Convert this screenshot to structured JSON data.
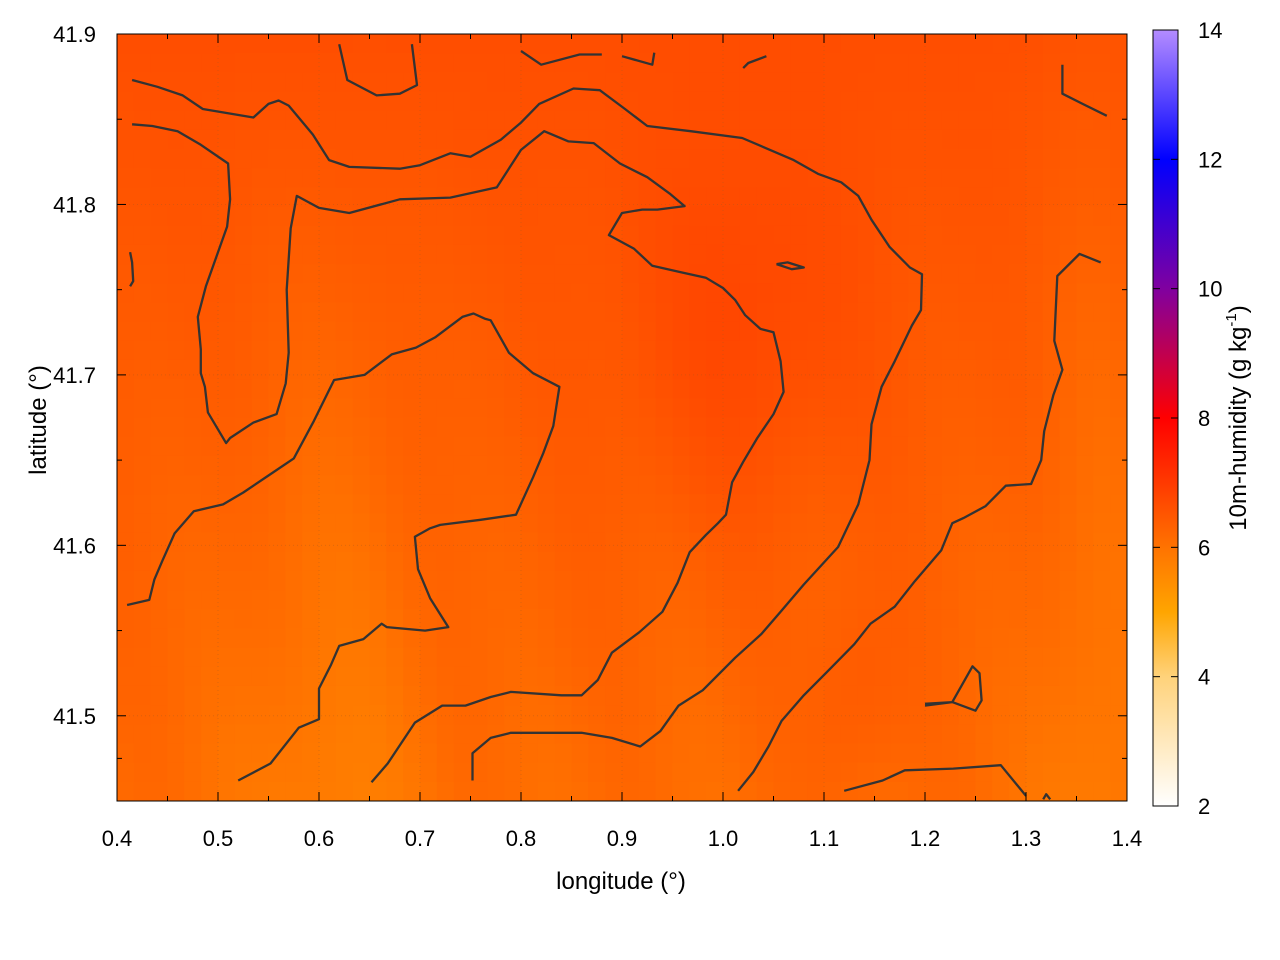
{
  "chart_data": {
    "type": "heatmap",
    "xlabel": "longitude (°)",
    "ylabel": "latitude (°)",
    "colorbar_label": "10m-humidity (g kg",
    "colorbar_label_sup": "-1",
    "colorbar_label_end": ")",
    "xlim": [
      0.4,
      1.4
    ],
    "ylim": [
      41.45,
      41.9
    ],
    "x_ticks": [
      0.4,
      0.5,
      0.6,
      0.7,
      0.8,
      0.9,
      1.0,
      1.1,
      1.2,
      1.3,
      1.4
    ],
    "x_tick_labels": [
      "0.4",
      "0.5",
      "0.6",
      "0.7",
      "0.8",
      "0.9",
      "1.0",
      "1.1",
      "1.2",
      "1.3",
      "1.4"
    ],
    "y_ticks": [
      41.5,
      41.6,
      41.7,
      41.8,
      41.9
    ],
    "y_tick_labels": [
      "41.5",
      "41.6",
      "41.7",
      "41.8",
      "41.9"
    ],
    "colorbar": {
      "range": [
        2,
        14
      ],
      "ticks": [
        2,
        4,
        6,
        8,
        10,
        12,
        14
      ],
      "tick_labels": [
        "2",
        "4",
        "6",
        "8",
        "10",
        "12",
        "14"
      ],
      "stops": [
        {
          "value": 2,
          "color": "#ffffff"
        },
        {
          "value": 4,
          "color": "#ffd27a"
        },
        {
          "value": 5,
          "color": "#ffa500"
        },
        {
          "value": 6,
          "color": "#ff7300"
        },
        {
          "value": 8,
          "color": "#ff0000"
        },
        {
          "value": 10,
          "color": "#8000a0"
        },
        {
          "value": 12,
          "color": "#0000ff"
        },
        {
          "value": 14,
          "color": "#b48cff"
        }
      ]
    },
    "field_range": [
      5.2,
      6.9
    ],
    "grid": true,
    "contour_color": "#333333",
    "contours": [
      [
        [
          0.415,
          41.873
        ],
        [
          0.44,
          41.869
        ],
        [
          0.465,
          41.864
        ],
        [
          0.485,
          41.856
        ],
        [
          0.535,
          41.851
        ],
        [
          0.55,
          41.859
        ],
        [
          0.56,
          41.861
        ],
        [
          0.57,
          41.858
        ],
        [
          0.594,
          41.841
        ],
        [
          0.61,
          41.826
        ],
        [
          0.63,
          41.822
        ],
        [
          0.68,
          41.821
        ],
        [
          0.7,
          41.823
        ],
        [
          0.73,
          41.83
        ],
        [
          0.75,
          41.828
        ],
        [
          0.78,
          41.838
        ],
        [
          0.8,
          41.848
        ],
        [
          0.818,
          41.859
        ],
        [
          0.852,
          41.868
        ],
        [
          0.878,
          41.867
        ],
        [
          0.903,
          41.856
        ],
        [
          0.925,
          41.846
        ],
        [
          0.968,
          41.843
        ],
        [
          1.019,
          41.839
        ],
        [
          1.07,
          41.826
        ],
        [
          1.094,
          41.818
        ],
        [
          1.117,
          41.813
        ],
        [
          1.134,
          41.805
        ],
        [
          1.147,
          41.791
        ],
        [
          1.165,
          41.775
        ],
        [
          1.185,
          41.763
        ],
        [
          1.197,
          41.759
        ],
        [
          1.196,
          41.738
        ],
        [
          1.187,
          41.729
        ],
        [
          1.17,
          41.708
        ],
        [
          1.157,
          41.693
        ],
        [
          1.147,
          41.671
        ],
        [
          1.145,
          41.65
        ],
        [
          1.134,
          41.624
        ],
        [
          1.114,
          41.599
        ],
        [
          1.08,
          41.577
        ],
        [
          1.057,
          41.561
        ],
        [
          1.038,
          41.548
        ],
        [
          1.012,
          41.534
        ],
        [
          0.98,
          41.515
        ],
        [
          0.956,
          41.506
        ],
        [
          0.938,
          41.491
        ],
        [
          0.918,
          41.482
        ],
        [
          0.89,
          41.487
        ],
        [
          0.86,
          41.49
        ],
        [
          0.79,
          41.49
        ],
        [
          0.77,
          41.487
        ],
        [
          0.752,
          41.478
        ],
        [
          0.752,
          41.462
        ]
      ],
      [
        [
          0.415,
          41.847
        ],
        [
          0.435,
          41.846
        ],
        [
          0.46,
          41.843
        ],
        [
          0.483,
          41.835
        ],
        [
          0.51,
          41.824
        ],
        [
          0.512,
          41.803
        ],
        [
          0.509,
          41.787
        ],
        [
          0.488,
          41.752
        ],
        [
          0.48,
          41.734
        ],
        [
          0.483,
          41.715
        ],
        [
          0.483,
          41.701
        ],
        [
          0.487,
          41.693
        ],
        [
          0.49,
          41.678
        ],
        [
          0.508,
          41.66
        ],
        [
          0.512,
          41.663
        ],
        [
          0.535,
          41.672
        ],
        [
          0.558,
          41.677
        ],
        [
          0.567,
          41.695
        ],
        [
          0.57,
          41.713
        ],
        [
          0.568,
          41.75
        ],
        [
          0.572,
          41.786
        ],
        [
          0.578,
          41.805
        ],
        [
          0.6,
          41.798
        ],
        [
          0.63,
          41.795
        ],
        [
          0.68,
          41.803
        ],
        [
          0.73,
          41.804
        ],
        [
          0.776,
          41.81
        ],
        [
          0.8,
          41.832
        ],
        [
          0.823,
          41.843
        ],
        [
          0.847,
          41.837
        ],
        [
          0.872,
          41.836
        ],
        [
          0.898,
          41.824
        ],
        [
          0.925,
          41.816
        ],
        [
          0.948,
          41.806
        ],
        [
          0.962,
          41.799
        ],
        [
          0.935,
          41.797
        ],
        [
          0.92,
          41.797
        ],
        [
          0.9,
          41.795
        ],
        [
          0.887,
          41.782
        ],
        [
          0.912,
          41.774
        ],
        [
          0.93,
          41.764
        ],
        [
          0.96,
          41.76
        ],
        [
          0.983,
          41.757
        ],
        [
          1.0,
          41.751
        ],
        [
          1.012,
          41.744
        ],
        [
          1.022,
          41.735
        ],
        [
          1.037,
          41.727
        ],
        [
          1.05,
          41.725
        ],
        [
          1.057,
          41.708
        ],
        [
          1.06,
          41.69
        ],
        [
          1.05,
          41.677
        ],
        [
          1.034,
          41.663
        ],
        [
          1.02,
          41.649
        ],
        [
          1.009,
          41.637
        ],
        [
          1.003,
          41.618
        ],
        [
          0.995,
          41.613
        ],
        [
          0.983,
          41.606
        ],
        [
          0.967,
          41.596
        ],
        [
          0.955,
          41.578
        ],
        [
          0.94,
          41.561
        ],
        [
          0.917,
          41.549
        ],
        [
          0.89,
          41.537
        ],
        [
          0.876,
          41.521
        ],
        [
          0.86,
          41.512
        ],
        [
          0.84,
          41.512
        ],
        [
          0.79,
          41.514
        ],
        [
          0.77,
          41.511
        ],
        [
          0.745,
          41.506
        ],
        [
          0.722,
          41.506
        ],
        [
          0.695,
          41.496
        ],
        [
          0.668,
          41.472
        ],
        [
          0.652,
          41.461
        ]
      ],
      [
        [
          0.41,
          41.565
        ],
        [
          0.432,
          41.568
        ],
        [
          0.437,
          41.58
        ],
        [
          0.445,
          41.591
        ],
        [
          0.457,
          41.607
        ],
        [
          0.476,
          41.62
        ],
        [
          0.505,
          41.624
        ],
        [
          0.525,
          41.631
        ],
        [
          0.55,
          41.641
        ],
        [
          0.575,
          41.651
        ],
        [
          0.595,
          41.673
        ],
        [
          0.615,
          41.697
        ],
        [
          0.645,
          41.7
        ],
        [
          0.672,
          41.712
        ],
        [
          0.696,
          41.716
        ],
        [
          0.715,
          41.722
        ],
        [
          0.742,
          41.734
        ],
        [
          0.753,
          41.736
        ],
        [
          0.764,
          41.733
        ],
        [
          0.77,
          41.732
        ],
        [
          0.788,
          41.713
        ],
        [
          0.812,
          41.701
        ],
        [
          0.838,
          41.693
        ],
        [
          0.832,
          41.67
        ],
        [
          0.822,
          41.654
        ],
        [
          0.812,
          41.64
        ],
        [
          0.795,
          41.618
        ],
        [
          0.76,
          41.615
        ],
        [
          0.72,
          41.612
        ],
        [
          0.71,
          41.61
        ],
        [
          0.695,
          41.605
        ],
        [
          0.698,
          41.586
        ],
        [
          0.71,
          41.569
        ],
        [
          0.728,
          41.552
        ],
        [
          0.705,
          41.55
        ],
        [
          0.667,
          41.552
        ],
        [
          0.662,
          41.554
        ],
        [
          0.644,
          41.545
        ],
        [
          0.62,
          41.541
        ],
        [
          0.612,
          41.53
        ],
        [
          0.6,
          41.516
        ],
        [
          0.6,
          41.498
        ],
        [
          0.58,
          41.493
        ],
        [
          0.552,
          41.472
        ],
        [
          0.52,
          41.462
        ]
      ],
      [
        [
          1.12,
          41.456
        ],
        [
          1.158,
          41.462
        ],
        [
          1.18,
          41.468
        ],
        [
          1.228,
          41.469
        ],
        [
          1.275,
          41.471
        ],
        [
          1.3,
          41.453
        ]
      ],
      [
        [
          1.015,
          41.456
        ],
        [
          1.03,
          41.467
        ],
        [
          1.045,
          41.482
        ],
        [
          1.058,
          41.497
        ],
        [
          1.08,
          41.512
        ],
        [
          1.105,
          41.527
        ],
        [
          1.13,
          41.542
        ],
        [
          1.146,
          41.554
        ],
        [
          1.17,
          41.564
        ],
        [
          1.19,
          41.579
        ],
        [
          1.216,
          41.597
        ],
        [
          1.227,
          41.613
        ],
        [
          1.238,
          41.616
        ],
        [
          1.26,
          41.623
        ],
        [
          1.28,
          41.635
        ],
        [
          1.305,
          41.636
        ],
        [
          1.315,
          41.65
        ],
        [
          1.318,
          41.667
        ],
        [
          1.327,
          41.688
        ],
        [
          1.336,
          41.703
        ],
        [
          1.328,
          41.72
        ],
        [
          1.331,
          41.758
        ],
        [
          1.353,
          41.771
        ],
        [
          1.374,
          41.766
        ]
      ],
      [
        [
          1.336,
          41.882
        ],
        [
          1.336,
          41.865
        ],
        [
          1.356,
          41.859
        ],
        [
          1.38,
          41.852
        ]
      ],
      [
        [
          0.62,
          41.894
        ],
        [
          0.628,
          41.873
        ],
        [
          0.657,
          41.864
        ],
        [
          0.68,
          41.865
        ],
        [
          0.697,
          41.87
        ],
        [
          0.692,
          41.894
        ]
      ],
      [
        [
          0.8,
          41.89
        ],
        [
          0.82,
          41.882
        ],
        [
          0.858,
          41.888
        ],
        [
          0.88,
          41.888
        ]
      ],
      [
        [
          0.9,
          41.887
        ],
        [
          0.93,
          41.882
        ],
        [
          0.932,
          41.889
        ]
      ],
      [
        [
          1.02,
          41.88
        ],
        [
          1.025,
          41.883
        ],
        [
          1.043,
          41.887
        ]
      ],
      [
        [
          1.053,
          41.765
        ],
        [
          1.064,
          41.766
        ],
        [
          1.08,
          41.763
        ],
        [
          1.068,
          41.762
        ],
        [
          1.053,
          41.765
        ]
      ],
      [
        [
          0.413,
          41.772
        ],
        [
          0.415,
          41.766
        ],
        [
          0.416,
          41.755
        ],
        [
          0.413,
          41.752
        ]
      ],
      [
        [
          1.2,
          41.507
        ],
        [
          1.227,
          41.508
        ],
        [
          1.25,
          41.503
        ],
        [
          1.256,
          41.509
        ],
        [
          1.254,
          41.525
        ],
        [
          1.247,
          41.529
        ],
        [
          1.227,
          41.508
        ],
        [
          1.2,
          41.506
        ]
      ],
      [
        [
          1.317,
          41.451
        ],
        [
          1.32,
          41.454
        ],
        [
          1.324,
          41.451
        ]
      ]
    ]
  }
}
